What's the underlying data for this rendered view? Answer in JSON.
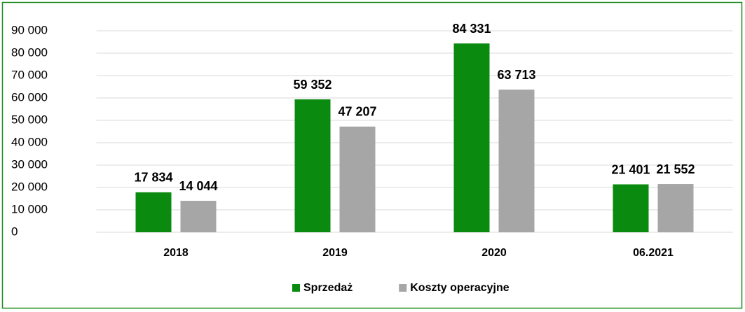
{
  "chart_data": {
    "type": "bar",
    "categories": [
      "2018",
      "2019",
      "2020",
      "06.2021"
    ],
    "series": [
      {
        "name": "Sprzedaż",
        "color": "#0a8a0f",
        "values": [
          17834,
          59352,
          84331,
          21401
        ],
        "value_labels": [
          "17 834",
          "59 352",
          "84 331",
          "21 401"
        ]
      },
      {
        "name": "Koszty operacyjne",
        "color": "#a6a6a6",
        "values": [
          14044,
          47207,
          63713,
          21552
        ],
        "value_labels": [
          "14 044",
          "47 207",
          "63 713",
          "21 552"
        ]
      }
    ],
    "ylim": [
      0,
      90000
    ],
    "yticks": [
      {
        "value": 0,
        "label": "0"
      },
      {
        "value": 10000,
        "label": "10 000"
      },
      {
        "value": 20000,
        "label": "20 000"
      },
      {
        "value": 30000,
        "label": "30 000"
      },
      {
        "value": 40000,
        "label": "40 000"
      },
      {
        "value": 50000,
        "label": "50 000"
      },
      {
        "value": 60000,
        "label": "60 000"
      },
      {
        "value": 70000,
        "label": "70 000"
      },
      {
        "value": 80000,
        "label": "80 000"
      },
      {
        "value": 90000,
        "label": "90 000"
      }
    ],
    "grid": true,
    "legend": "bottom"
  }
}
